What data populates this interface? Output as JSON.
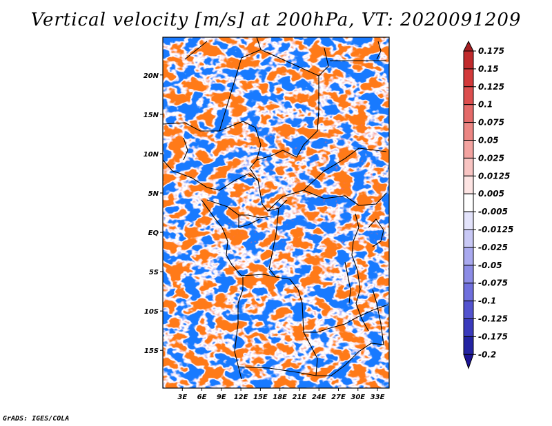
{
  "title": "Vertical velocity [m/s] at 200hPa, VT: 2020091209",
  "footer": "GrADS: IGES/COLA",
  "map": {
    "lat_labels": [
      "20N",
      "15N",
      "10N",
      "5N",
      "EQ",
      "5S",
      "10S",
      "15S"
    ],
    "lon_labels": [
      "3E",
      "6E",
      "9E",
      "12E",
      "15E",
      "18E",
      "21E",
      "24E",
      "27E",
      "30E",
      "33E"
    ],
    "lat_values": [
      20,
      15,
      10,
      5,
      0,
      -5,
      -10,
      -15
    ],
    "lon_values": [
      3,
      6,
      9,
      12,
      15,
      18,
      21,
      24,
      27,
      30,
      33
    ],
    "lat_range": [
      -19.8,
      24.8
    ],
    "lon_range": [
      0.0,
      34.8
    ]
  },
  "colorbar": {
    "labels": [
      "0.175",
      "0.15",
      "0.125",
      "0.1",
      "0.075",
      "0.05",
      "0.025",
      "0.0125",
      "0.005",
      "-0.005",
      "-0.0125",
      "-0.025",
      "-0.05",
      "-0.075",
      "-0.1",
      "-0.125",
      "-0.175",
      "-0.2"
    ],
    "colors": [
      "#a51e22",
      "#c02a2c",
      "#d2393a",
      "#dc4e4e",
      "#e46a69",
      "#ec8683",
      "#f3a3a0",
      "#f8c4c2",
      "#fde4e3",
      "#ffffff",
      "#e3e3fb",
      "#c8c8f5",
      "#a9a9ef",
      "#8c8ce6",
      "#6f6fdd",
      "#5353cf",
      "#3a3abc",
      "#2323a2",
      "#1b1394"
    ]
  }
}
